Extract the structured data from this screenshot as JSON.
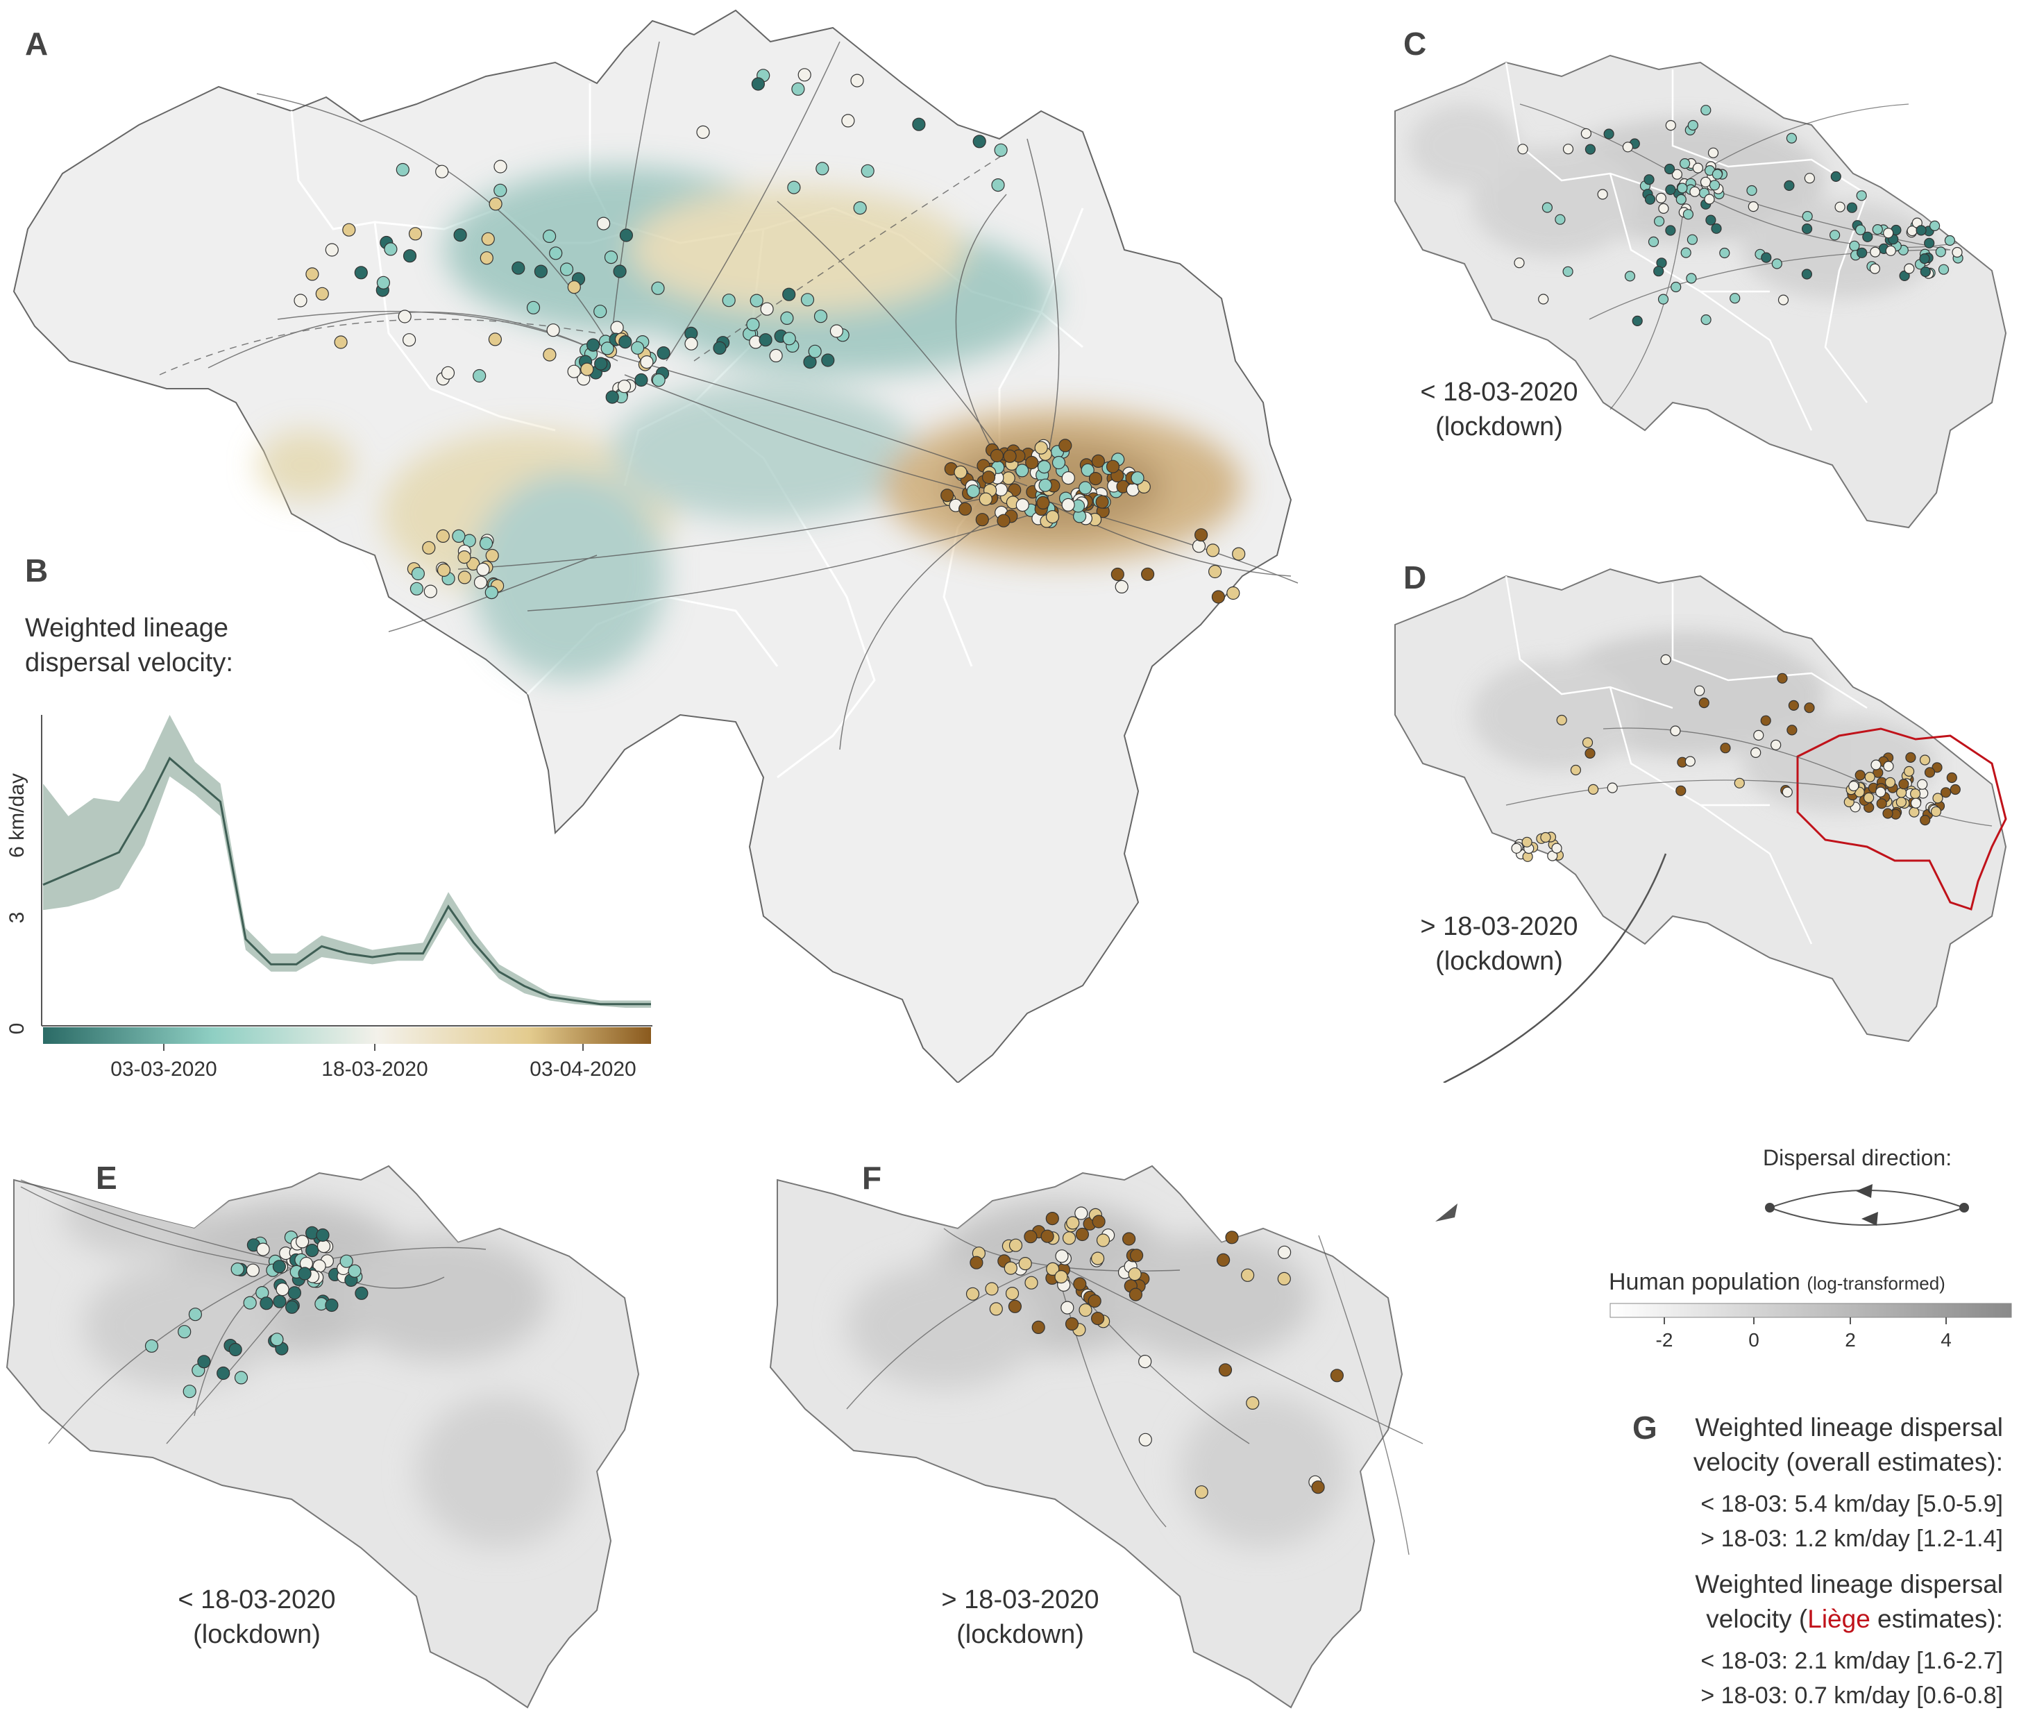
{
  "panels": {
    "a": "A",
    "b": "B",
    "c": "C",
    "d": "D",
    "e": "E",
    "f": "F",
    "g": "G"
  },
  "panel_b": {
    "title_line1": "Weighted lineage",
    "title_line2": "dispersal velocity:",
    "y_unit": "6 km/day",
    "y_tick_3": "3",
    "y_tick_0": "0",
    "x_ticks": [
      "03-03-2020",
      "18-03-2020",
      "03-04-2020"
    ]
  },
  "chart_data": {
    "type": "line",
    "ylabel": "km/day",
    "ylim": [
      0,
      8.6
    ],
    "yticks": [
      "0",
      "3",
      "6"
    ],
    "x_axis": "date (22-02-2020 to 09-04-2020)",
    "x_tick_labels": [
      "03-03-2020",
      "18-03-2020",
      "03-04-2020"
    ],
    "series": [
      {
        "x": [
          "22-02",
          "24-02",
          "26-02",
          "28-02",
          "01-03",
          "03-03",
          "05-03",
          "07-03",
          "09-03",
          "11-03",
          "13-03",
          "15-03",
          "17-03",
          "19-03",
          "21-03",
          "23-03",
          "25-03",
          "27-03",
          "29-03",
          "31-03",
          "02-04",
          "04-04",
          "06-04",
          "08-04",
          "09-04"
        ],
        "y": [
          3.9,
          4.2,
          4.5,
          4.8,
          6.0,
          7.4,
          6.8,
          6.2,
          2.4,
          1.7,
          1.7,
          2.2,
          2.0,
          1.9,
          2.0,
          2.0,
          3.3,
          2.3,
          1.5,
          1.1,
          0.8,
          0.7,
          0.6,
          0.6,
          0.6
        ],
        "lower": [
          3.2,
          3.3,
          3.5,
          3.8,
          5.0,
          6.9,
          6.4,
          5.8,
          2.1,
          1.5,
          1.5,
          1.9,
          1.8,
          1.7,
          1.8,
          1.8,
          3.0,
          2.1,
          1.3,
          0.9,
          0.7,
          0.6,
          0.55,
          0.5,
          0.5
        ],
        "upper": [
          6.7,
          5.8,
          6.3,
          6.2,
          7.1,
          8.6,
          7.3,
          6.7,
          2.7,
          2.0,
          2.0,
          2.5,
          2.3,
          2.1,
          2.2,
          2.3,
          3.7,
          2.6,
          1.7,
          1.3,
          0.9,
          0.8,
          0.7,
          0.7,
          0.7
        ]
      }
    ],
    "color_scale": [
      "#2b6b66",
      "#8fcfc3",
      "#f3f1ea",
      "#e3cb8e",
      "#8a5a1e"
    ]
  },
  "captions": {
    "c_line1": "< 18-03-2020",
    "c_line2": "(lockdown)",
    "d_line1": "> 18-03-2020",
    "d_line2": "(lockdown)",
    "e_line1": "< 18-03-2020",
    "e_line2": "(lockdown)",
    "f_line1": "> 18-03-2020",
    "f_line2": "(lockdown)"
  },
  "legend": {
    "direction_title": "Dispersal direction:",
    "population_title": "Human population",
    "population_note": "(log-transformed)",
    "population_ticks": [
      "-2",
      "0",
      "2",
      "4"
    ]
  },
  "panel_g": {
    "overall_title_1": "Weighted lineage dispersal",
    "overall_title_2": "velocity (overall estimates):",
    "overall_before": "< 18-03: 5.4 km/day [5.0-5.9]",
    "overall_after": "> 18-03: 1.2 km/day [1.2-1.4]",
    "liege_title_1": "Weighted lineage dispersal",
    "liege_title_2_pre": "velocity (",
    "liege_name": "Liège",
    "liege_title_2_post": " estimates):",
    "liege_before": "< 18-03: 2.1 km/day [1.6-2.7]",
    "liege_after": "> 18-03: 0.7 km/day [0.6-0.8]"
  },
  "colors": {
    "teal_dark": "#2b6b66",
    "teal": "#8fcfc3",
    "neutral": "#f3f1ea",
    "tan": "#e3cb8e",
    "brown": "#8a5a1e",
    "liege_border": "#c0121a",
    "map_fill": "#efefef"
  }
}
